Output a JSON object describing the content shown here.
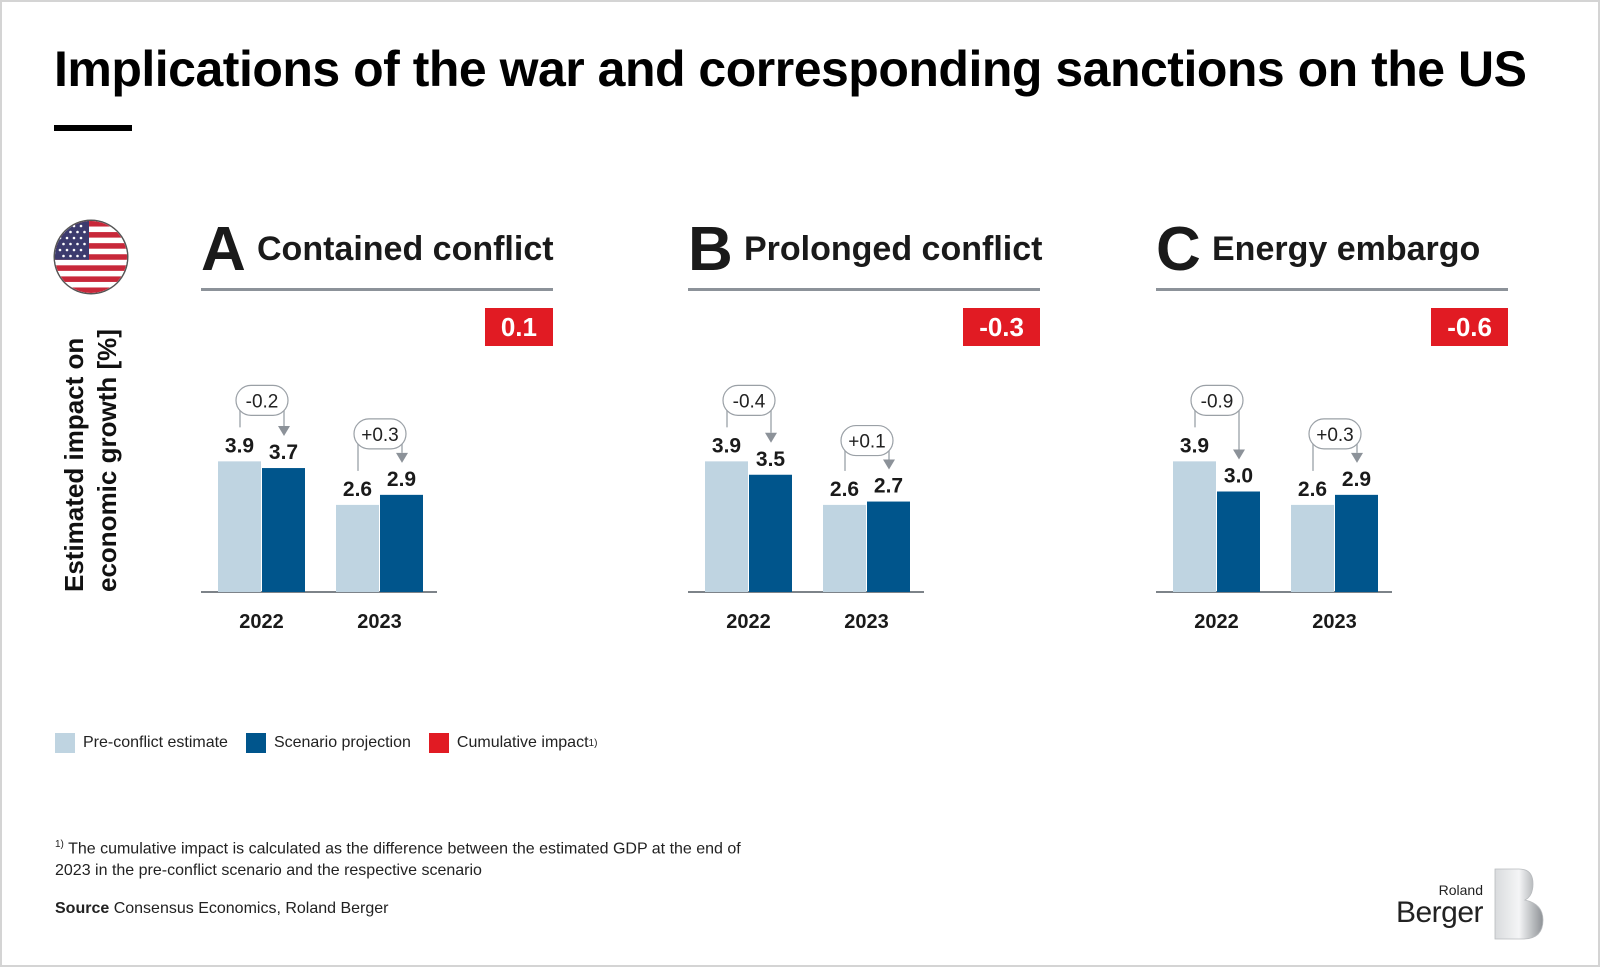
{
  "title": "Implications of the war and corresponding sanctions on the US",
  "flag": {
    "icon": "us-flag-icon"
  },
  "y_axis_label_line1": "Estimated impact on",
  "y_axis_label_line2": "economic growth [%]",
  "colors": {
    "pre_conflict": "#bfd4e1",
    "scenario": "#00558c",
    "cumulative": "#e11b23",
    "annotation": "#8c9299"
  },
  "chart_data": [
    {
      "type": "bar",
      "panel_letter": "A",
      "title": "Contained conflict",
      "cumulative_impact": "0.1",
      "categories": [
        "2022",
        "2023"
      ],
      "series": [
        {
          "name": "Pre-conflict estimate",
          "values": [
            3.9,
            2.6
          ]
        },
        {
          "name": "Scenario projection",
          "values": [
            3.7,
            2.9
          ]
        }
      ],
      "value_labels": {
        "pre": [
          "3.9",
          "2.6"
        ],
        "scenario": [
          "3.7",
          "2.9"
        ]
      },
      "differences": [
        "-0.2",
        "+0.3"
      ],
      "xlabel": "",
      "ylabel": "Estimated impact on economic growth [%]",
      "ylim": [
        0,
        4
      ]
    },
    {
      "type": "bar",
      "panel_letter": "B",
      "title": "Prolonged conflict",
      "cumulative_impact": "-0.3",
      "categories": [
        "2022",
        "2023"
      ],
      "series": [
        {
          "name": "Pre-conflict estimate",
          "values": [
            3.9,
            2.6
          ]
        },
        {
          "name": "Scenario projection",
          "values": [
            3.5,
            2.7
          ]
        }
      ],
      "value_labels": {
        "pre": [
          "3.9",
          "2.6"
        ],
        "scenario": [
          "3.5",
          "2.7"
        ]
      },
      "differences": [
        "-0.4",
        "+0.1"
      ],
      "xlabel": "",
      "ylabel": "Estimated impact on economic growth [%]",
      "ylim": [
        0,
        4
      ]
    },
    {
      "type": "bar",
      "panel_letter": "C",
      "title": "Energy embargo",
      "cumulative_impact": "-0.6",
      "categories": [
        "2022",
        "2023"
      ],
      "series": [
        {
          "name": "Pre-conflict estimate",
          "values": [
            3.9,
            2.6
          ]
        },
        {
          "name": "Scenario projection",
          "values": [
            3.0,
            2.9
          ]
        }
      ],
      "value_labels": {
        "pre": [
          "3.9",
          "2.6"
        ],
        "scenario": [
          "3.0",
          "2.9"
        ]
      },
      "differences": [
        "-0.9",
        "+0.3"
      ],
      "xlabel": "",
      "ylabel": "Estimated impact on economic growth [%]",
      "ylim": [
        0,
        4
      ]
    }
  ],
  "legend": [
    {
      "label": "Pre-conflict estimate",
      "color": "#bfd4e1"
    },
    {
      "label": "Scenario projection",
      "color": "#00558c"
    },
    {
      "label": "Cumulative impact",
      "sup": "1)",
      "color": "#e11b23"
    }
  ],
  "footnote": {
    "marker": "1)",
    "text": "The cumulative impact is calculated as the difference between the estimated GDP at the end of 2023 in the pre-conflict scenario and the respective scenario"
  },
  "source": {
    "label": "Source",
    "text": "Consensus Economics, Roland Berger"
  },
  "logo": {
    "line1": "Roland",
    "line2": "Berger"
  }
}
